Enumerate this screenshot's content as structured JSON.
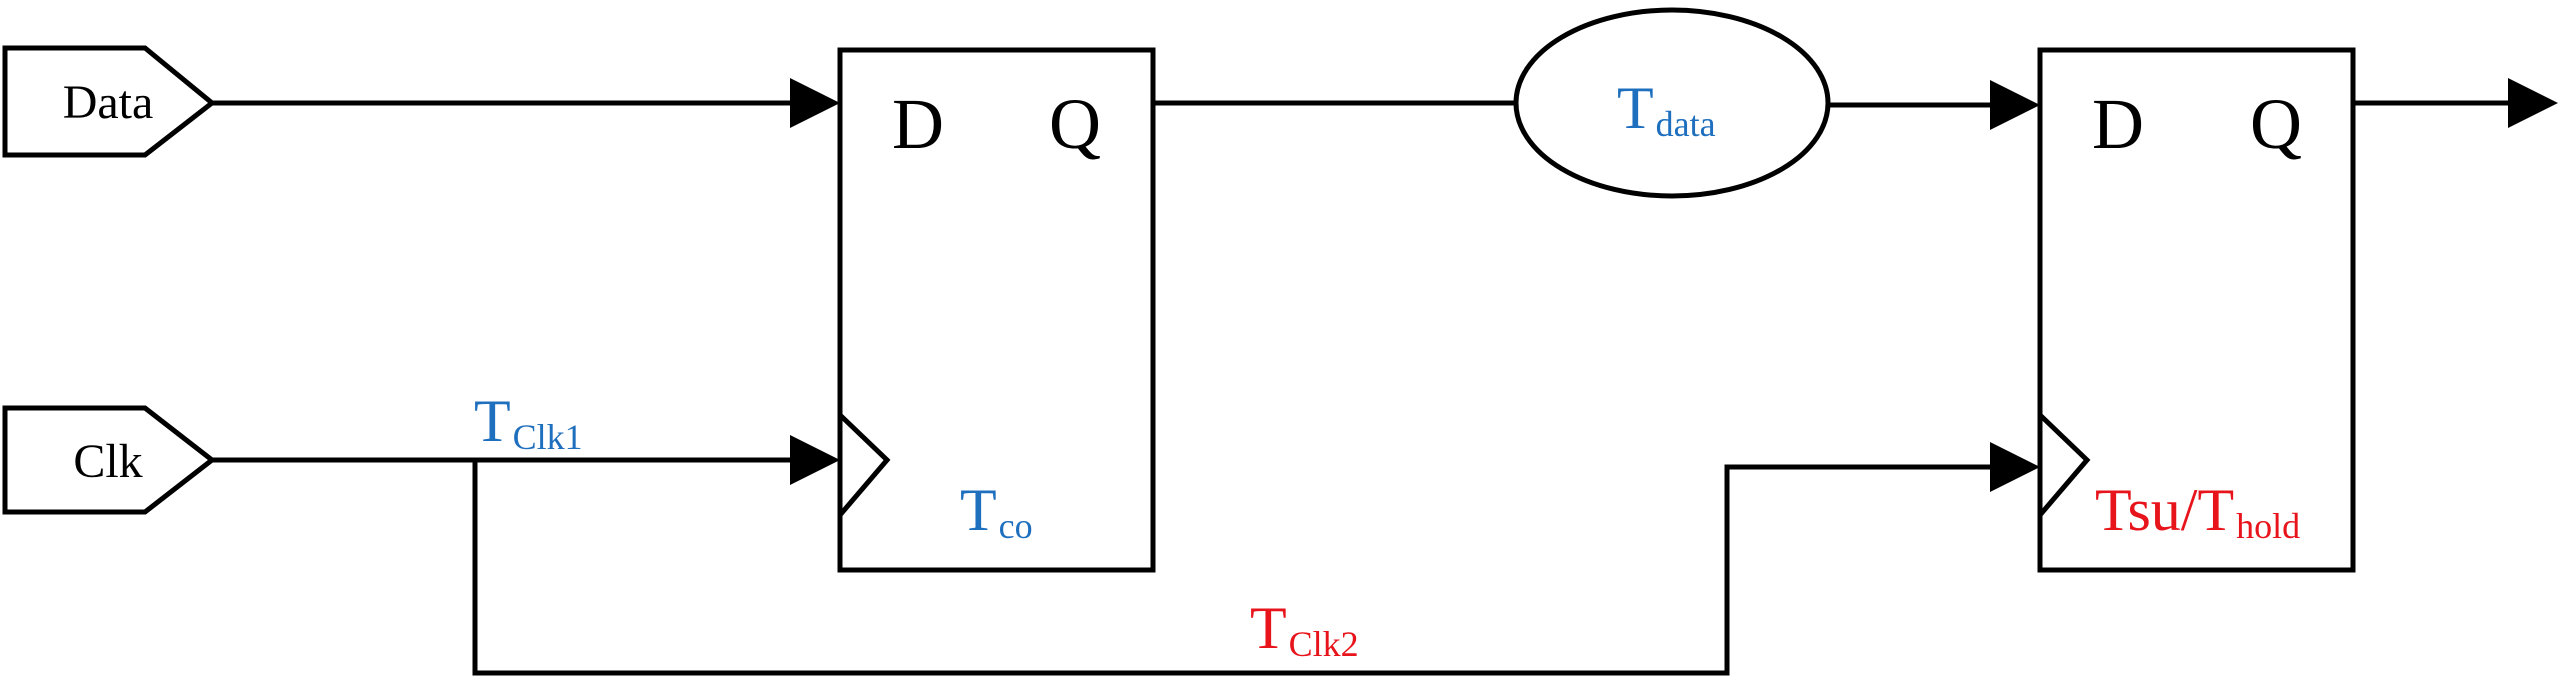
{
  "colors": {
    "line": "#000000",
    "blue": "#1f6fbf",
    "red": "#e8141c"
  },
  "inputs": {
    "data_label": "Data",
    "clk_label": "Clk"
  },
  "ff1": {
    "d_label": "D",
    "q_label": "Q"
  },
  "ff2": {
    "d_label": "D",
    "q_label": "Q"
  },
  "timing": {
    "tdata": {
      "main": "T",
      "sub": "data"
    },
    "tclk1": {
      "main": "T",
      "sub": "Clk1"
    },
    "tco": {
      "main": "T",
      "sub": "co"
    },
    "tclk2": {
      "main": "T",
      "sub": "Clk2"
    },
    "tsu_hold": {
      "main": "Tsu/T",
      "sub": "hold"
    }
  }
}
